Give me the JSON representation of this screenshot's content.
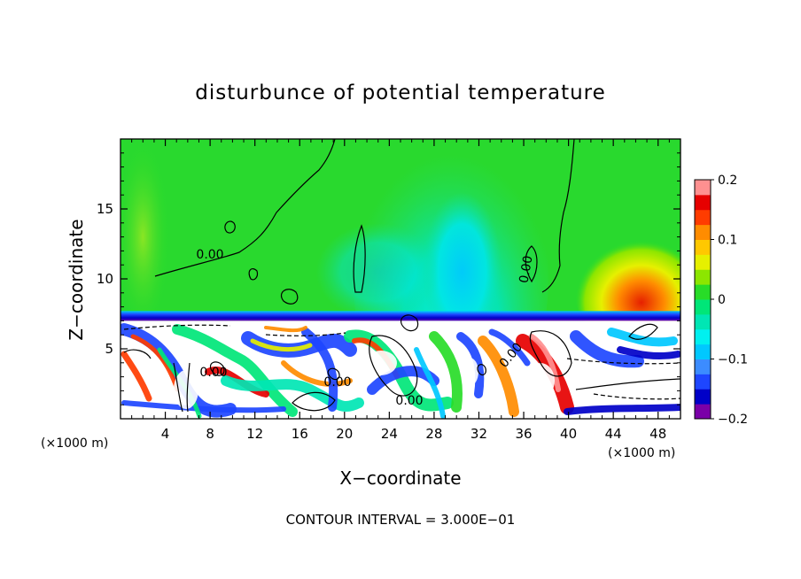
{
  "chart_data": {
    "type": "heatmap",
    "title": "disturbunce of potential temperature",
    "xlabel": "X−coordinate",
    "ylabel": "Z−coordinate",
    "x_unit_left": "(×1000 m)",
    "x_unit_right": "(×1000 m)",
    "xlim": [
      0,
      50
    ],
    "ylim": [
      0,
      20
    ],
    "x_ticks": [
      4,
      8,
      12,
      16,
      20,
      24,
      28,
      32,
      36,
      40,
      44,
      48
    ],
    "x_tick_labels": [
      "4",
      "8",
      "12",
      "16",
      "20",
      "24",
      "28",
      "32",
      "36",
      "40",
      "44",
      "48"
    ],
    "y_ticks": [
      5,
      10,
      15
    ],
    "y_tick_labels": [
      "5",
      "10",
      "15"
    ],
    "colorbar": {
      "range": [
        -0.2,
        0.2
      ],
      "ticks": [
        0.2,
        0.1,
        0,
        -0.1,
        -0.2
      ],
      "tick_labels": [
        "0.2",
        "0.1",
        "0",
        "−0.1",
        "−0.2"
      ],
      "colors": [
        "#7a00a8",
        "#0000c8",
        "#1e46ff",
        "#3c8cff",
        "#00c8ff",
        "#00f0f0",
        "#00e6b4",
        "#00e678",
        "#28dc28",
        "#8ce600",
        "#e6f000",
        "#ffc800",
        "#ff8c00",
        "#ff3c00",
        "#e60000",
        "#ff9090"
      ]
    },
    "contour_labels": [
      "0.00",
      "0.00",
      "0.00",
      "0.00",
      "0.00",
      "0.00"
    ],
    "footer": "CONTOUR INTERVAL = 3.000E−01"
  }
}
